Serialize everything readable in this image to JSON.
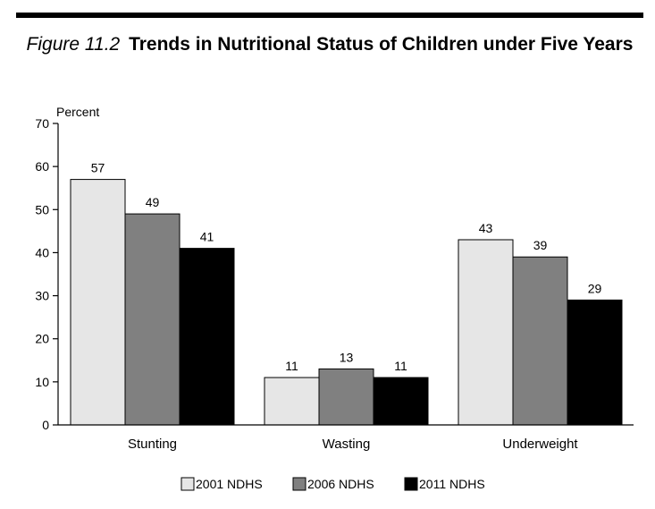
{
  "figure_label": "Figure 11.2",
  "title": "Trends in Nutritional Status of Children under Five Years",
  "chart_data": {
    "type": "bar",
    "ylabel": "Percent",
    "ylim": [
      0,
      70
    ],
    "yticks": [
      0,
      10,
      20,
      30,
      40,
      50,
      60,
      70
    ],
    "categories": [
      "Stunting",
      "Wasting",
      "Underweight"
    ],
    "series": [
      {
        "name": "2001 NDHS",
        "values": [
          57,
          11,
          43
        ],
        "color": "#e6e6e6"
      },
      {
        "name": "2006 NDHS",
        "values": [
          49,
          13,
          39
        ],
        "color": "#808080"
      },
      {
        "name": "2011 NDHS",
        "values": [
          41,
          11,
          29
        ],
        "color": "#000000"
      }
    ],
    "data_labels": true,
    "grid": false,
    "legend": "bottom"
  }
}
